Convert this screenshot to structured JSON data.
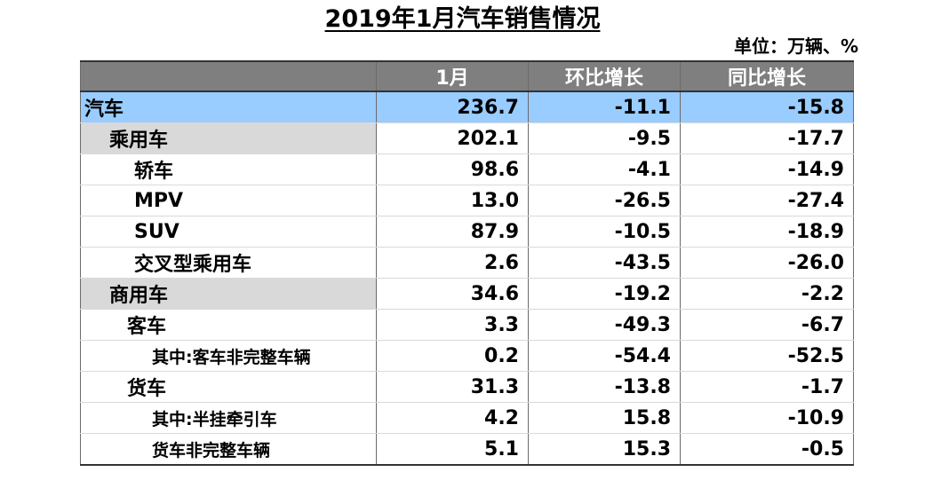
{
  "title": "2019年1月汽车销售情况",
  "unit_label": "单位：万辆、%",
  "headers": [
    "",
    "1月",
    "环比增长",
    "同比增长"
  ],
  "rows": [
    {
      "name": "汽车",
      "month": "236.7",
      "mom": "-11.1",
      "yoy": "-15.8"
    },
    {
      "name": "乘用车",
      "month": "202.1",
      "mom": "-9.5",
      "yoy": "-17.7"
    },
    {
      "name": "轿车",
      "month": "98.6",
      "mom": "-4.1",
      "yoy": "-14.9"
    },
    {
      "name": "MPV",
      "month": "13.0",
      "mom": "-26.5",
      "yoy": "-27.4"
    },
    {
      "name": "SUV",
      "month": "87.9",
      "mom": "-10.5",
      "yoy": "-18.9"
    },
    {
      "name": "交叉型乘用车",
      "month": "2.6",
      "mom": "-43.5",
      "yoy": "-26.0"
    },
    {
      "name": "商用车",
      "month": "34.6",
      "mom": "-19.2",
      "yoy": "-2.2"
    },
    {
      "name": "客车",
      "month": "3.3",
      "mom": "-49.3",
      "yoy": "-6.7"
    },
    {
      "name": "其中:客车非完整车辆",
      "month": "0.2",
      "mom": "-54.4",
      "yoy": "-52.5"
    },
    {
      "name": "货车",
      "month": "31.3",
      "mom": "-13.8",
      "yoy": "-1.7"
    },
    {
      "name": "其中:半挂牵引车",
      "month": "4.2",
      "mom": "15.8",
      "yoy": "-10.9"
    },
    {
      "name": "货车非完整车辆",
      "month": "5.1",
      "mom": "15.3",
      "yoy": "-0.5"
    }
  ],
  "colors": {
    "header_bg": "#7f7f7f",
    "total_row_bg": "#99ccff",
    "category_row_bg": "#d9d9d9"
  }
}
